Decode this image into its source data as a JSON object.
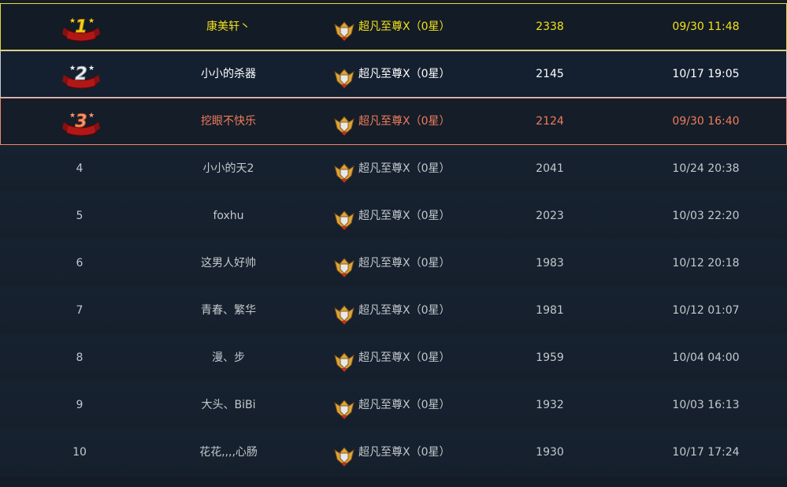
{
  "colors": {
    "gold": "#f2e21a",
    "silver": "#ffffff",
    "bronze": "#f07c5c",
    "normal": "#c3c8cc"
  },
  "rows": [
    {
      "rank": "1",
      "rank_icon": "gold-rank-1-ribbon-icon",
      "name": "康美轩丶",
      "tier": "超凡至尊X（0星）",
      "score": "2338",
      "time": "09/30 11:48",
      "color": "gold"
    },
    {
      "rank": "2",
      "rank_icon": "silver-rank-2-ribbon-icon",
      "name": "小小的杀器",
      "tier": "超凡至尊X（0星）",
      "score": "2145",
      "time": "10/17 19:05",
      "color": "silver"
    },
    {
      "rank": "3",
      "rank_icon": "bronze-rank-3-ribbon-icon",
      "name": "挖眼不快乐",
      "tier": "超凡至尊X（0星）",
      "score": "2124",
      "time": "09/30 16:40",
      "color": "bronze"
    },
    {
      "rank": "4",
      "name": "小小的天2",
      "tier": "超凡至尊X（0星）",
      "score": "2041",
      "time": "10/24 20:38",
      "color": "normal"
    },
    {
      "rank": "5",
      "name": "foxhu",
      "tier": "超凡至尊X（0星）",
      "score": "2023",
      "time": "10/03 22:20",
      "color": "normal"
    },
    {
      "rank": "6",
      "name": "这男人好帅",
      "tier": "超凡至尊X（0星）",
      "score": "1983",
      "time": "10/12 20:18",
      "color": "normal"
    },
    {
      "rank": "7",
      "name": "青春、繁华",
      "tier": "超凡至尊X（0星）",
      "score": "1981",
      "time": "10/12 01:07",
      "color": "normal"
    },
    {
      "rank": "8",
      "name": "漫、步",
      "tier": "超凡至尊X（0星）",
      "score": "1959",
      "time": "10/04 04:00",
      "color": "normal"
    },
    {
      "rank": "9",
      "name": "大头、BiBi",
      "tier": "超凡至尊X（0星）",
      "score": "1932",
      "time": "10/03 16:13",
      "color": "normal"
    },
    {
      "rank": "10",
      "name": "花花,,,,心肠",
      "tier": "超凡至尊X（0星）",
      "score": "1930",
      "time": "10/17 17:24",
      "color": "normal"
    }
  ]
}
